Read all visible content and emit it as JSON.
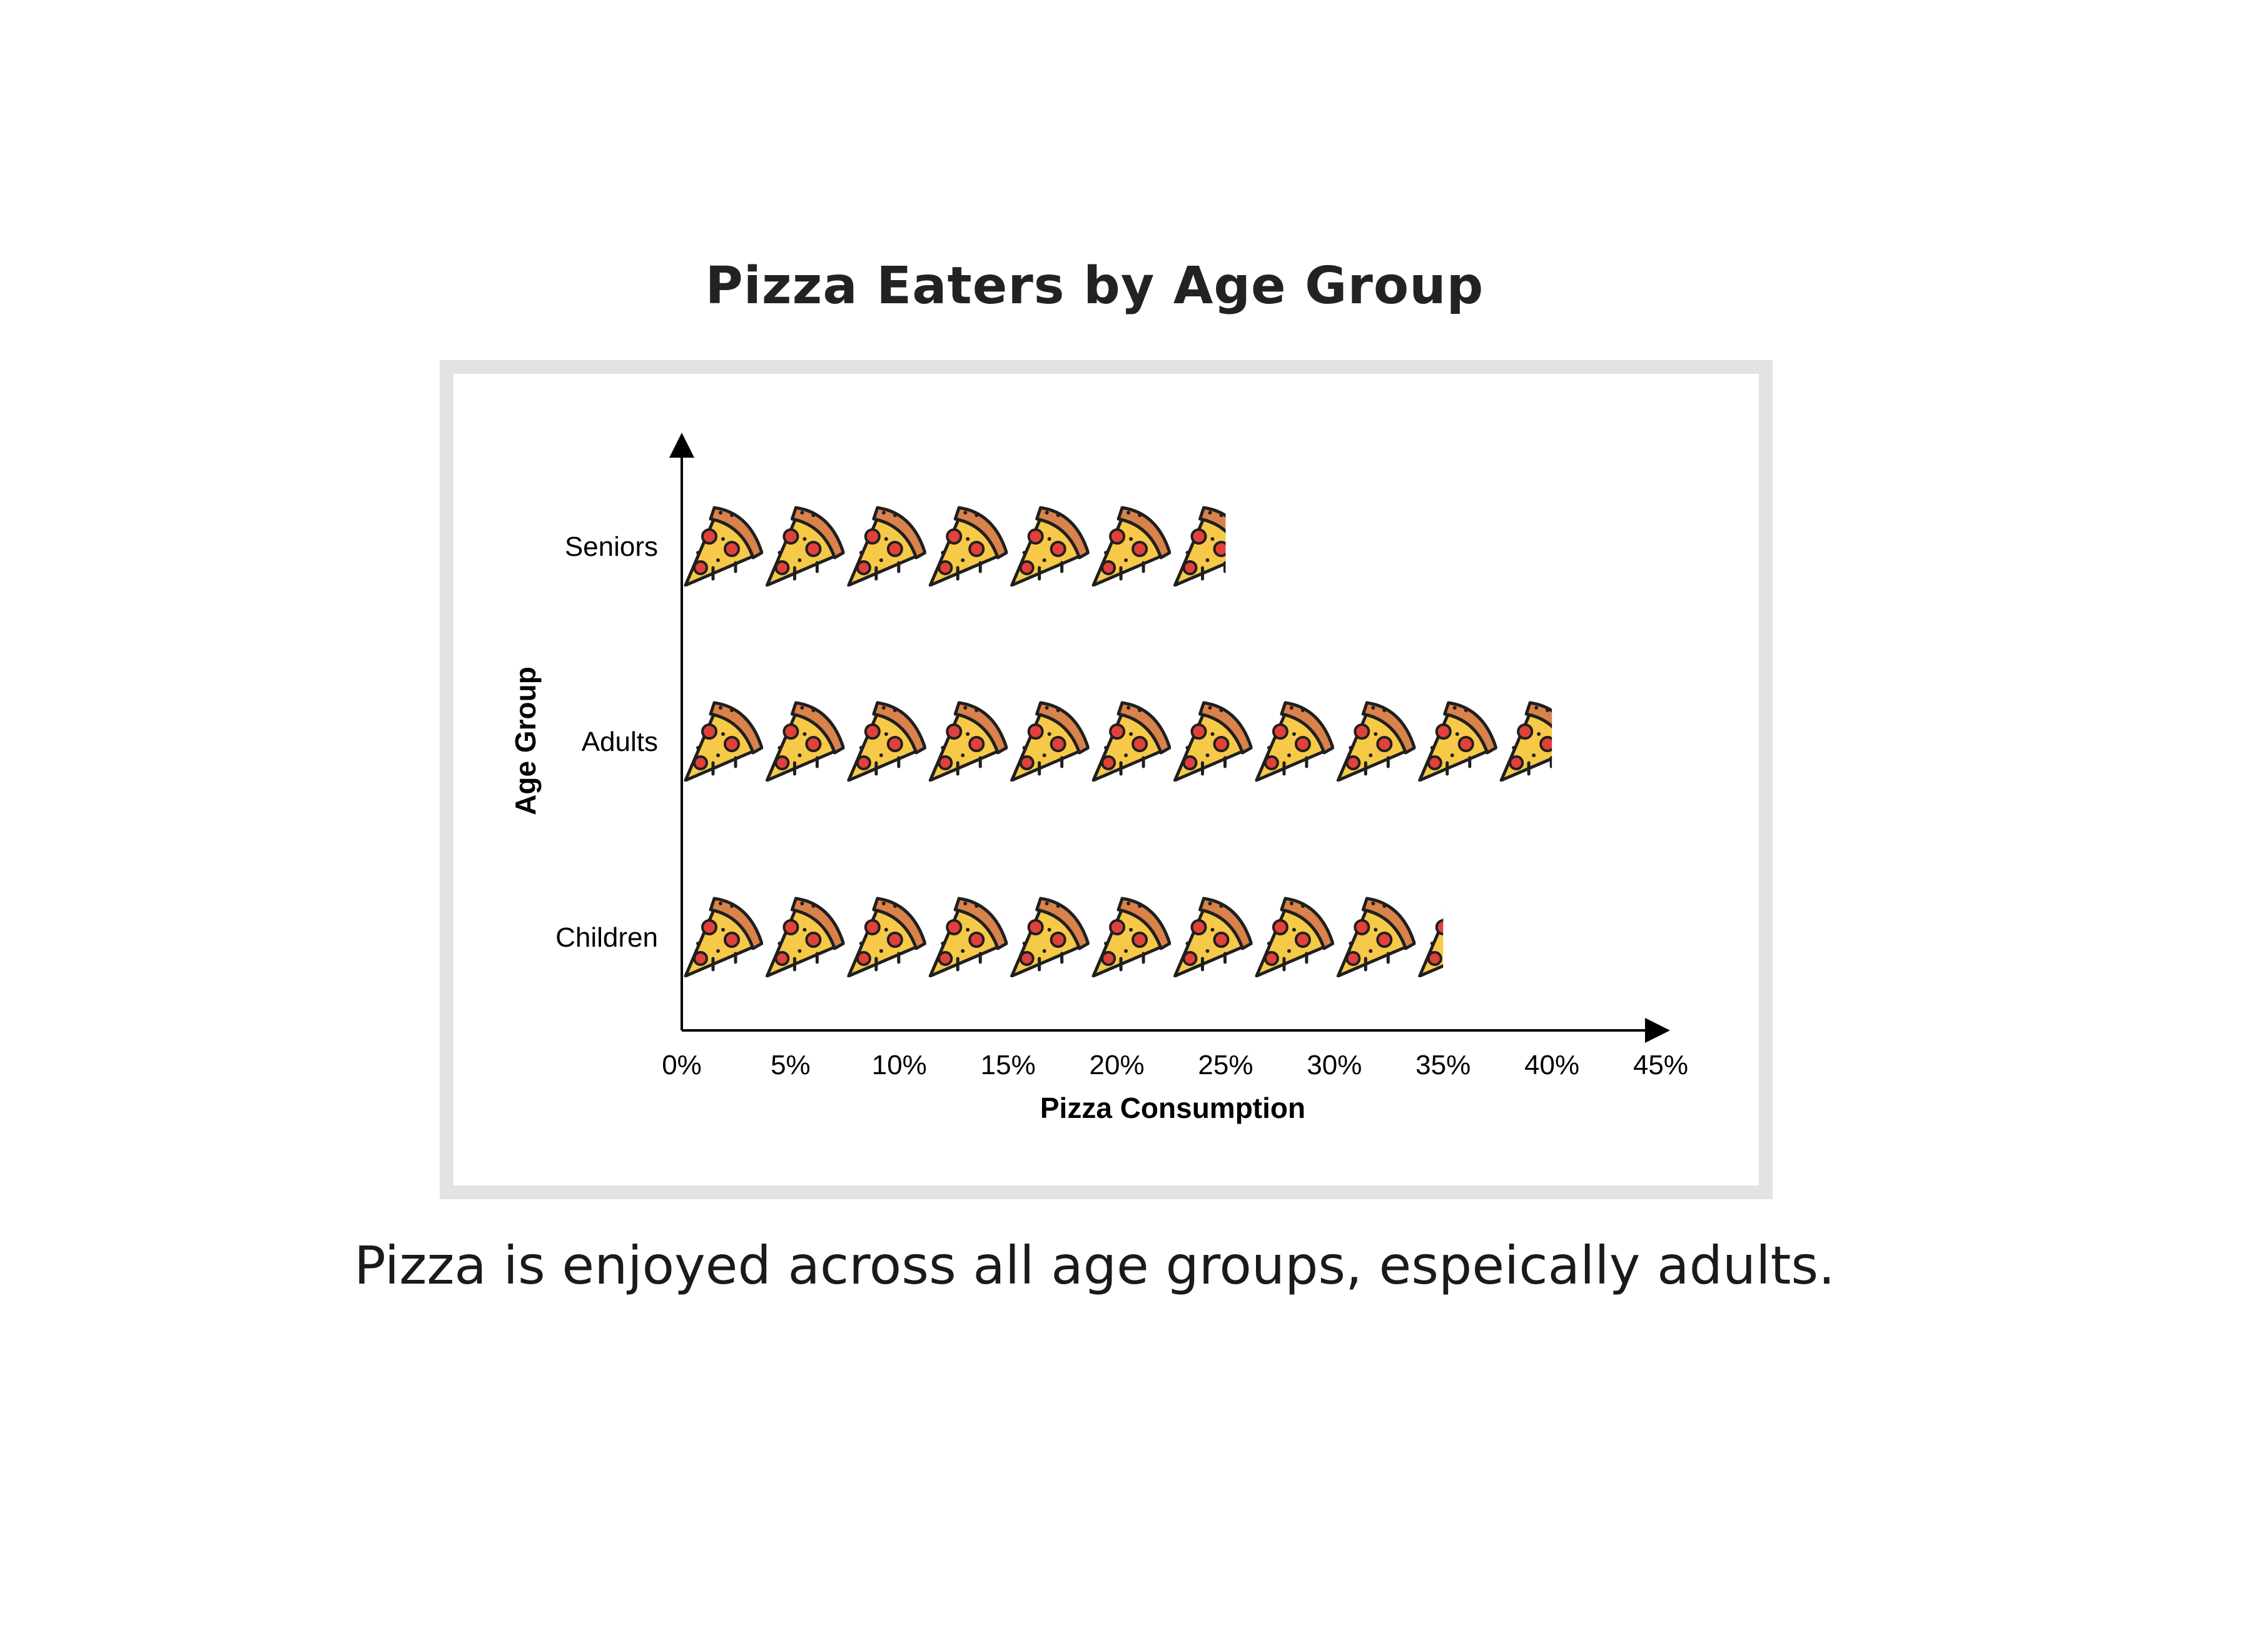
{
  "title": "Pizza Eaters by Age Group",
  "caption": "Pizza is enjoyed across all age groups, espeically adults.",
  "chart_data": {
    "type": "bar",
    "orientation": "horizontal",
    "style": "pictograph",
    "icon": "pizza-slice-icon",
    "unit_per_icon": 3.75,
    "categories": [
      "Children",
      "Adults",
      "Seniors"
    ],
    "values": [
      35,
      40,
      25
    ],
    "xlabel": "Pizza Consumption",
    "ylabel": "Age Group",
    "xlim": [
      0,
      45
    ],
    "xticks": [
      "0%",
      "5%",
      "10%",
      "15%",
      "20%",
      "25%",
      "30%",
      "35%",
      "40%",
      "45%"
    ],
    "grid": false,
    "colors": {
      "crust": "#d9824a",
      "cheese": "#f7c948",
      "pepperoni": "#e0413a",
      "outline": "#1f1f1f",
      "frame": "#e3e3e3"
    }
  }
}
